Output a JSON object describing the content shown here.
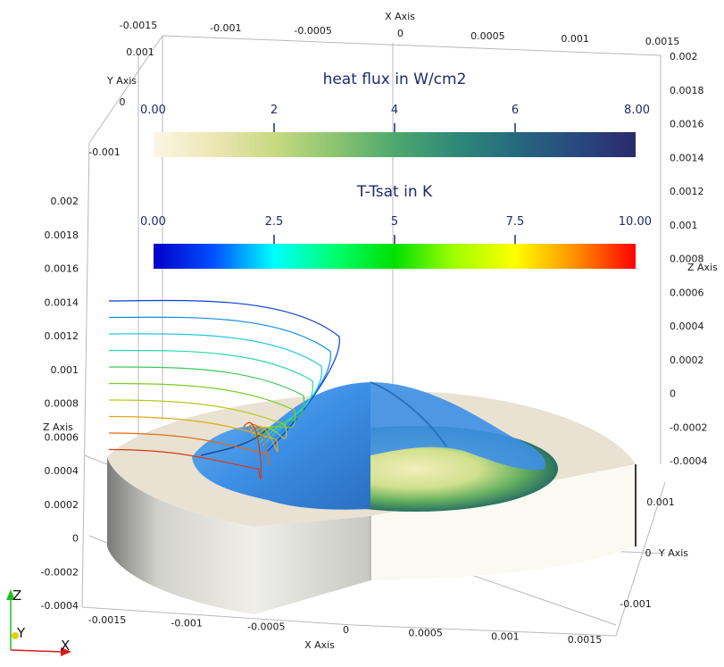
{
  "colorbars": [
    {
      "title": "heat flux in W/cm2",
      "min_label": "0.00",
      "max_label": "8.00",
      "ticks": [
        "2",
        "4",
        "6"
      ],
      "colormap": [
        "#fbf6e4",
        "#ece7b5",
        "#c8d982",
        "#8dc470",
        "#4fa86d",
        "#2e8a78",
        "#26697f",
        "#284a7f",
        "#2b2a6b"
      ]
    },
    {
      "title": "T-Tsat in K",
      "min_label": "0.00",
      "max_label": "10.00",
      "ticks": [
        "2.5",
        "5",
        "7.5"
      ],
      "colormap": [
        "#0000c8",
        "#0050ff",
        "#00ffff",
        "#00ff70",
        "#00e000",
        "#a0ff00",
        "#ffff00",
        "#ff9000",
        "#ff0000"
      ]
    }
  ],
  "axes": {
    "top_x": {
      "title": "X Axis",
      "ticks": [
        "-0.0015",
        "-0.001",
        "-0.0005",
        "0",
        "0.0005",
        "0.001",
        "0.0015"
      ]
    },
    "top_left_y": {
      "title": "Y Axis",
      "ticks": [
        "0.001",
        "0",
        "-0.001"
      ]
    },
    "right_z": {
      "title": "Z Axis",
      "ticks": [
        "0.002",
        "0.0018",
        "0.0016",
        "0.0014",
        "0.0012",
        "0.001",
        "0.0008",
        "0.0006",
        "0.0004",
        "0.0002",
        "0",
        "-0.0002",
        "-0.0004"
      ]
    },
    "left_z": {
      "title": "Z Axis",
      "ticks": [
        "0.002",
        "0.0018",
        "0.0016",
        "0.0014",
        "0.0012",
        "0.001",
        "0.0008",
        "0.0006",
        "0.0004",
        "0.0002",
        "0",
        "-0.0002",
        "-0.0004"
      ]
    },
    "bottom_x": {
      "title": "X Axis",
      "ticks": [
        "-0.0015",
        "-0.001",
        "-0.0005",
        "0",
        "0.0005",
        "0.001",
        "0.0015"
      ]
    },
    "bottom_right_y": {
      "title": "Y Axis",
      "ticks": [
        "0.001",
        "0",
        "-0.001"
      ]
    }
  },
  "orientation": {
    "z": "Z",
    "y": "Y",
    "x": "X",
    "z_color": "#1fbf1f",
    "y_color": "#e0d010",
    "x_color": "#d41c1c"
  },
  "surfaces": {
    "bubble": "#3d8fe6",
    "bubble_light": "#6fb3f0",
    "solid_top": "#e8e0d0",
    "solid_side": "#d8d8d2",
    "plate_light": "#fbfaf2"
  }
}
